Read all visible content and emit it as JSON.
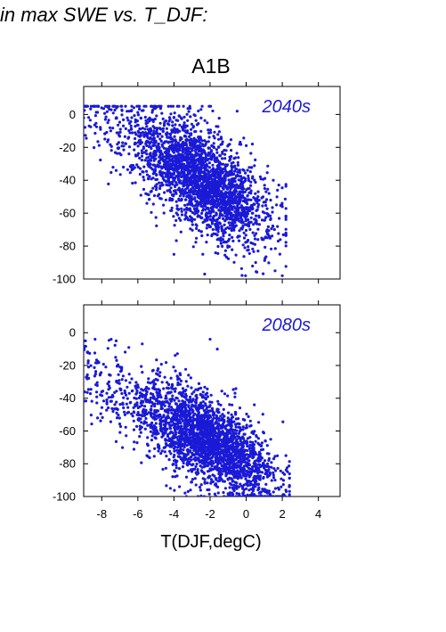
{
  "heading": "in max SWE vs. T_DJF:",
  "chart_data": {
    "type": "scatter",
    "scenario": "A1B",
    "xlabel": "T(DJF,degC)",
    "xlim": [
      -9,
      5.2
    ],
    "ylim": [
      -100,
      17
    ],
    "xticks": [
      -8,
      -6,
      -4,
      -2,
      0,
      2,
      4
    ],
    "yticks": [
      0,
      -20,
      -40,
      -60,
      -80,
      -100
    ],
    "marker_color": "#1a1ad6",
    "panels": [
      {
        "label": "2040s",
        "n_points": 2600,
        "point_cloud_summary": {
          "x_mean": -2.3,
          "x_sd": 1.75,
          "x_range": [
            -9,
            2.2
          ],
          "y_mean": -40,
          "y_sd": 20,
          "y_range": [
            -98,
            5
          ],
          "slope_dy_dx": -6.5
        },
        "sample_points": [
          {
            "x": -9.0,
            "y": -2
          },
          {
            "x": -8.7,
            "y": -7
          },
          {
            "x": -7.5,
            "y": -10
          },
          {
            "x": -5.0,
            "y": 4
          },
          {
            "x": -2.5,
            "y": 3
          },
          {
            "x": -0.5,
            "y": 2
          },
          {
            "x": 1.5,
            "y": -40
          },
          {
            "x": 2.2,
            "y": -72
          },
          {
            "x": 1.6,
            "y": -95
          },
          {
            "x": -2.3,
            "y": -97
          },
          {
            "x": -4.0,
            "y": -85
          },
          {
            "x": -6.8,
            "y": -32
          }
        ]
      },
      {
        "label": "2080s",
        "n_points": 2600,
        "point_cloud_summary": {
          "x_mean": -2.1,
          "x_sd": 1.8,
          "x_range": [
            -9,
            2.4
          ],
          "y_mean": -66,
          "y_sd": 18,
          "y_range": [
            -100,
            -4
          ],
          "slope_dy_dx": -6.0
        },
        "sample_points": [
          {
            "x": -9.0,
            "y": -5
          },
          {
            "x": -8.8,
            "y": -12
          },
          {
            "x": -7.2,
            "y": -5
          },
          {
            "x": -6.5,
            "y": -9
          },
          {
            "x": -2.0,
            "y": -4
          },
          {
            "x": -1.6,
            "y": -10
          },
          {
            "x": 2.2,
            "y": -75
          },
          {
            "x": 1.6,
            "y": -90
          },
          {
            "x": 0.4,
            "y": -99
          },
          {
            "x": -5.5,
            "y": -75
          },
          {
            "x": -7.6,
            "y": -30
          },
          {
            "x": -4.2,
            "y": -95
          }
        ]
      }
    ]
  }
}
